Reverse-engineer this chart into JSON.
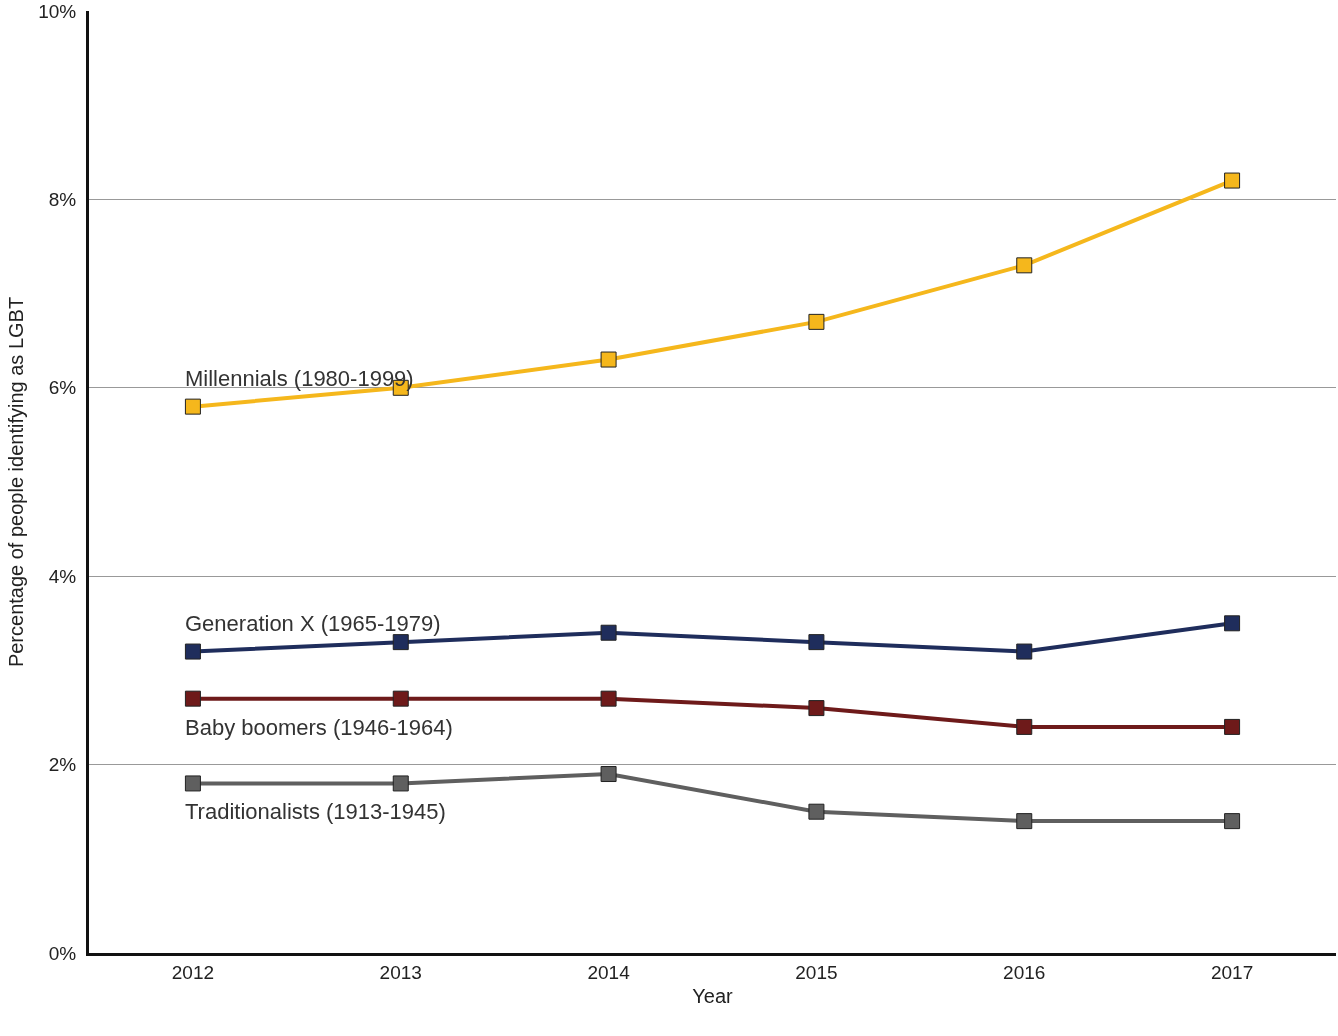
{
  "chart_data": {
    "type": "line",
    "xlabel": "Year",
    "ylabel": "Percentage of people identifying as LGBT",
    "categories": [
      "2012",
      "2013",
      "2014",
      "2015",
      "2016",
      "2017"
    ],
    "series": [
      {
        "name": "Millennials (1980-1999)",
        "color": "#f5b71c",
        "values": [
          5.8,
          6.0,
          6.3,
          6.7,
          7.3,
          8.2
        ]
      },
      {
        "name": "Generation X (1965-1979)",
        "color": "#1f2d5c",
        "values": [
          3.2,
          3.3,
          3.4,
          3.3,
          3.2,
          3.5
        ]
      },
      {
        "name": "Baby boomers (1946-1964)",
        "color": "#6e1a1a",
        "values": [
          2.7,
          2.7,
          2.7,
          2.6,
          2.4,
          2.4
        ]
      },
      {
        "name": "Traditionalists (1913-1945)",
        "color": "#5f5f5f",
        "values": [
          1.8,
          1.8,
          1.9,
          1.5,
          1.4,
          1.4
        ]
      }
    ],
    "ylim": [
      0,
      10
    ],
    "yticks": [
      {
        "value": 0,
        "label": "0%"
      },
      {
        "value": 2,
        "label": "2%"
      },
      {
        "value": 4,
        "label": "4%"
      },
      {
        "value": 6,
        "label": "6%"
      },
      {
        "value": 8,
        "label": "8%"
      },
      {
        "value": 10,
        "label": "10%"
      }
    ],
    "grid": "y",
    "legend": false,
    "marker": "square",
    "line_style": "solid"
  }
}
